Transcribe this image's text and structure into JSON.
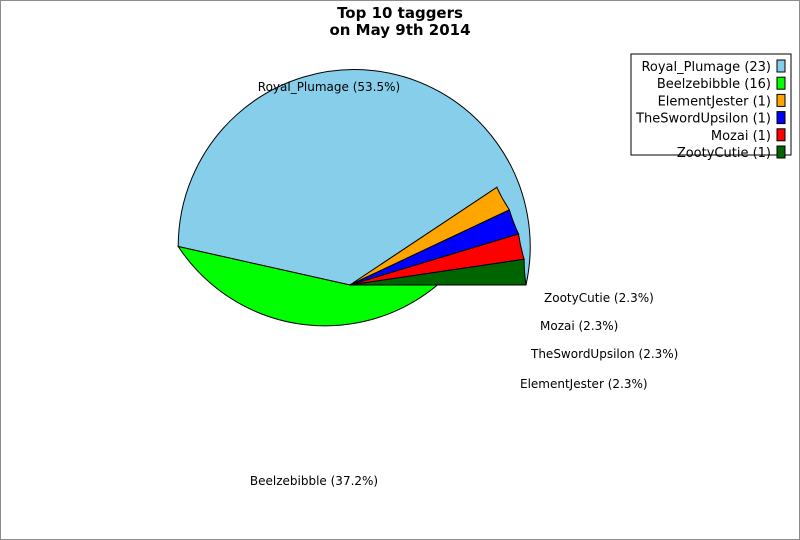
{
  "chart_data": {
    "type": "pie",
    "title": "Top 10 taggers",
    "subtitle": "on May 9th 2014",
    "slices": [
      {
        "name": "Royal_Plumage",
        "count": 23,
        "percent": 53.5,
        "color": "#87CEEB",
        "label": "Royal_Plumage (53.5%)",
        "legend": "Royal_Plumage (23)"
      },
      {
        "name": "Beelzebibble",
        "count": 16,
        "percent": 37.2,
        "color": "#00FF00",
        "label": "Beelzebibble (37.2%)",
        "legend": "Beelzebibble (16)"
      },
      {
        "name": "ElementJester",
        "count": 1,
        "percent": 2.3,
        "color": "#FFA500",
        "label": "ElementJester (2.3%)",
        "legend": "ElementJester (1)"
      },
      {
        "name": "TheSwordUpsilon",
        "count": 1,
        "percent": 2.3,
        "color": "#0000FF",
        "label": "TheSwordUpsilon (2.3%)",
        "legend": "TheSwordUpsilon (1)"
      },
      {
        "name": "Mozai",
        "count": 1,
        "percent": 2.3,
        "color": "#FF0000",
        "label": "Mozai (2.3%)",
        "legend": "Mozai (1)"
      },
      {
        "name": "ZootyCutie",
        "count": 1,
        "percent": 2.3,
        "color": "#006400",
        "label": "ZootyCutie (2.3%)",
        "legend": "ZootyCutie (1)"
      }
    ],
    "legend_position": "top-right"
  }
}
